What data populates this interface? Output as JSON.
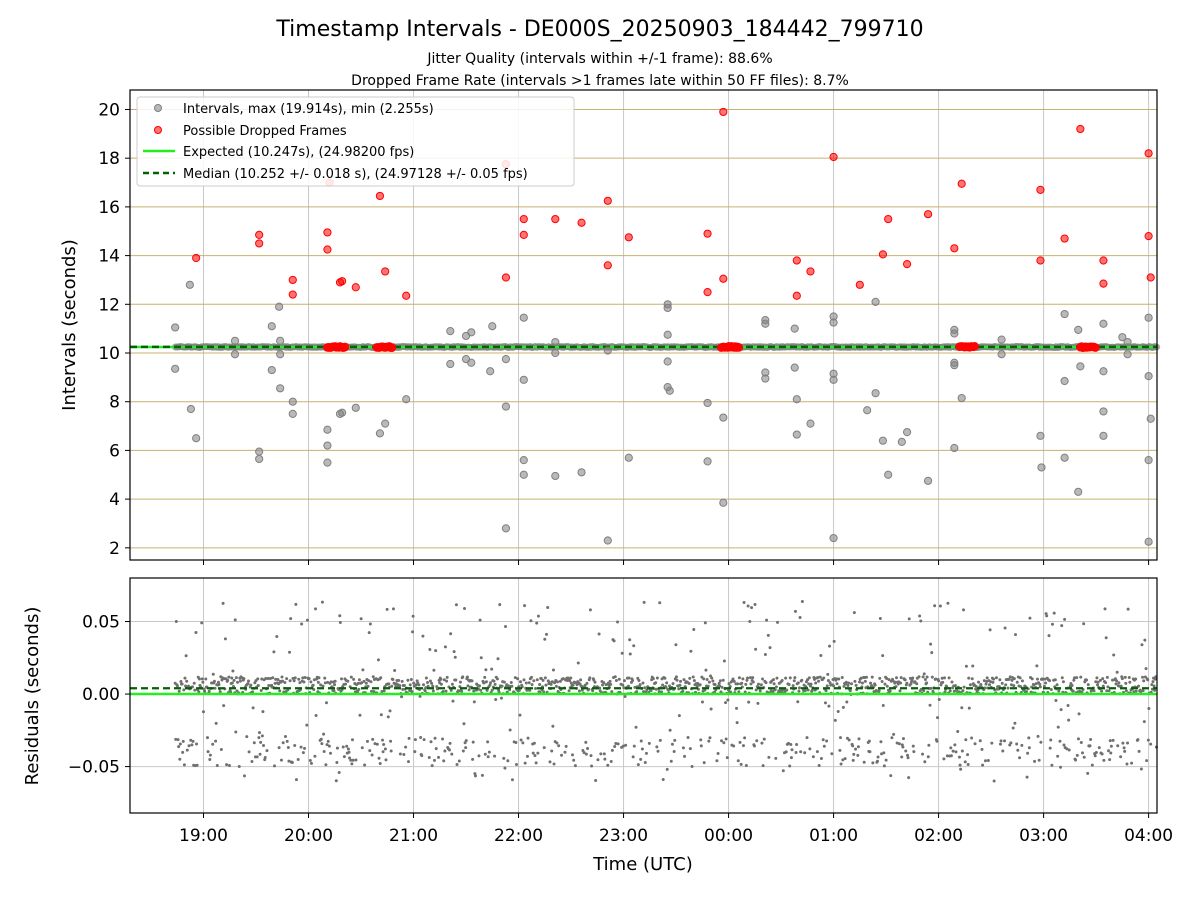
{
  "title": "Timestamp Intervals - DE000S_20250903_184442_799710",
  "subtitle1": "Jitter Quality (intervals within +/-1 frame): 88.6%",
  "subtitle2": "Dropped Frame Rate (intervals >1 frames late within 50 FF files): 8.7%",
  "colors": {
    "interval": "#808080",
    "dropped": "#ff0000",
    "expected": "#22ee22",
    "median": "#006400",
    "grid_h": "#c8b070",
    "grid_v": "#c8c8c8"
  },
  "chart_data": [
    {
      "type": "scatter",
      "panel": "intervals",
      "ylabel": "Intervals (seconds)",
      "xlabel": "",
      "xlim": [
        18.3,
        28.08
      ],
      "ylim": [
        1.5,
        20.8
      ],
      "yticks": [
        2,
        4,
        6,
        8,
        10,
        12,
        14,
        16,
        18,
        20
      ],
      "ytick_labels": [
        "2",
        "4",
        "6",
        "8",
        "10",
        "12",
        "14",
        "16",
        "18",
        "20"
      ],
      "legend": {
        "position": "top-left",
        "entries": [
          "Intervals, max (19.914s), min (2.255s)",
          "Possible Dropped Frames",
          "Expected (10.247s), (24.98200 fps)",
          "Median (10.252 +/- 0.018 s), (24.97128 +/- 0.05 fps)"
        ]
      },
      "expected": 10.247,
      "median": 10.252,
      "series": [
        {
          "name": "Intervals",
          "points": [
            [
              18.73,
              11.05
            ],
            [
              18.73,
              9.35
            ],
            [
              18.87,
              12.8
            ],
            [
              18.88,
              7.7
            ],
            [
              18.93,
              6.5
            ],
            [
              19.3,
              10.5
            ],
            [
              19.3,
              9.95
            ],
            [
              19.53,
              5.95
            ],
            [
              19.53,
              5.65
            ],
            [
              19.65,
              11.1
            ],
            [
              19.65,
              9.3
            ],
            [
              19.72,
              11.9
            ],
            [
              19.73,
              10.5
            ],
            [
              19.73,
              9.95
            ],
            [
              19.73,
              8.55
            ],
            [
              19.85,
              8.0
            ],
            [
              19.85,
              7.5
            ],
            [
              20.18,
              6.85
            ],
            [
              20.18,
              6.2
            ],
            [
              20.18,
              5.5
            ],
            [
              20.32,
              7.55
            ],
            [
              20.3,
              7.5
            ],
            [
              20.45,
              7.75
            ],
            [
              20.68,
              6.7
            ],
            [
              20.73,
              7.1
            ],
            [
              20.93,
              8.1
            ],
            [
              21.35,
              9.55
            ],
            [
              21.35,
              10.9
            ],
            [
              21.5,
              10.7
            ],
            [
              21.5,
              9.75
            ],
            [
              21.55,
              9.6
            ],
            [
              21.55,
              10.85
            ],
            [
              21.75,
              11.1
            ],
            [
              21.73,
              9.25
            ],
            [
              21.88,
              2.8
            ],
            [
              21.88,
              7.8
            ],
            [
              21.88,
              9.75
            ],
            [
              22.05,
              11.45
            ],
            [
              22.05,
              8.9
            ],
            [
              22.05,
              5.6
            ],
            [
              22.05,
              5.0
            ],
            [
              22.35,
              10.45
            ],
            [
              22.35,
              10.0
            ],
            [
              22.35,
              4.95
            ],
            [
              22.6,
              5.1
            ],
            [
              22.85,
              10.1
            ],
            [
              22.85,
              2.3
            ],
            [
              23.05,
              5.7
            ],
            [
              23.42,
              12.0
            ],
            [
              23.42,
              11.85
            ],
            [
              23.42,
              10.75
            ],
            [
              23.42,
              9.65
            ],
            [
              23.42,
              8.6
            ],
            [
              23.44,
              8.45
            ],
            [
              23.8,
              7.95
            ],
            [
              23.8,
              5.55
            ],
            [
              23.95,
              7.35
            ],
            [
              23.95,
              3.85
            ],
            [
              24.35,
              11.35
            ],
            [
              24.35,
              11.2
            ],
            [
              24.35,
              9.2
            ],
            [
              24.35,
              8.95
            ],
            [
              24.63,
              11.0
            ],
            [
              24.63,
              9.4
            ],
            [
              24.65,
              8.1
            ],
            [
              24.65,
              6.65
            ],
            [
              24.78,
              7.1
            ],
            [
              25.0,
              11.5
            ],
            [
              25.0,
              11.25
            ],
            [
              25.0,
              9.15
            ],
            [
              25.0,
              8.9
            ],
            [
              25.0,
              2.4
            ],
            [
              25.32,
              7.65
            ],
            [
              25.4,
              12.1
            ],
            [
              25.4,
              8.35
            ],
            [
              25.47,
              6.4
            ],
            [
              25.52,
              5.0
            ],
            [
              25.65,
              6.35
            ],
            [
              25.7,
              6.75
            ],
            [
              25.9,
              4.75
            ],
            [
              26.15,
              10.95
            ],
            [
              26.15,
              10.8
            ],
            [
              26.15,
              9.6
            ],
            [
              26.15,
              9.5
            ],
            [
              26.15,
              6.1
            ],
            [
              26.22,
              8.15
            ],
            [
              26.6,
              10.55
            ],
            [
              26.6,
              9.95
            ],
            [
              26.97,
              6.6
            ],
            [
              26.98,
              5.3
            ],
            [
              27.2,
              11.6
            ],
            [
              27.2,
              8.85
            ],
            [
              27.2,
              5.7
            ],
            [
              27.33,
              10.95
            ],
            [
              27.35,
              9.45
            ],
            [
              27.33,
              4.3
            ],
            [
              27.57,
              11.2
            ],
            [
              27.57,
              9.25
            ],
            [
              27.57,
              7.6
            ],
            [
              27.57,
              6.6
            ],
            [
              27.75,
              10.65
            ],
            [
              27.8,
              10.45
            ],
            [
              27.8,
              9.95
            ],
            [
              28.0,
              11.45
            ],
            [
              28.0,
              9.05
            ],
            [
              28.0,
              5.6
            ],
            [
              28.0,
              2.25
            ],
            [
              28.02,
              7.3
            ]
          ]
        },
        {
          "name": "Possible Dropped Frames",
          "points": [
            [
              18.93,
              13.9
            ],
            [
              19.53,
              14.5
            ],
            [
              19.53,
              14.85
            ],
            [
              19.85,
              13.0
            ],
            [
              19.85,
              12.4
            ],
            [
              20.18,
              14.95
            ],
            [
              20.18,
              14.25
            ],
            [
              20.2,
              17.0
            ],
            [
              20.32,
              12.95
            ],
            [
              20.3,
              12.9
            ],
            [
              20.45,
              12.7
            ],
            [
              20.68,
              16.45
            ],
            [
              20.73,
              13.35
            ],
            [
              20.93,
              12.35
            ],
            [
              21.88,
              17.75
            ],
            [
              21.88,
              13.1
            ],
            [
              22.05,
              15.5
            ],
            [
              22.05,
              14.85
            ],
            [
              22.35,
              15.5
            ],
            [
              22.6,
              15.35
            ],
            [
              22.85,
              16.25
            ],
            [
              22.85,
              13.6
            ],
            [
              23.05,
              14.75
            ],
            [
              23.8,
              14.9
            ],
            [
              23.8,
              12.5
            ],
            [
              23.95,
              19.9
            ],
            [
              23.95,
              13.05
            ],
            [
              24.65,
              13.8
            ],
            [
              24.65,
              12.35
            ],
            [
              24.78,
              13.35
            ],
            [
              25.0,
              18.05
            ],
            [
              25.25,
              12.8
            ],
            [
              25.47,
              14.05
            ],
            [
              25.52,
              15.5
            ],
            [
              25.7,
              13.65
            ],
            [
              25.9,
              15.7
            ],
            [
              26.15,
              14.3
            ],
            [
              26.22,
              16.95
            ],
            [
              26.97,
              16.7
            ],
            [
              26.97,
              13.8
            ],
            [
              27.2,
              14.7
            ],
            [
              27.35,
              19.2
            ],
            [
              27.57,
              13.8
            ],
            [
              27.57,
              12.85
            ],
            [
              28.0,
              18.2
            ],
            [
              28.0,
              14.8
            ],
            [
              28.02,
              13.1
            ]
          ]
        }
      ],
      "dropped_clusters_near_expected": [
        [
          20.18,
          20.35
        ],
        [
          20.65,
          20.8
        ],
        [
          23.93,
          24.1
        ],
        [
          26.2,
          26.35
        ],
        [
          27.35,
          27.5
        ]
      ]
    },
    {
      "type": "scatter",
      "panel": "residuals",
      "ylabel": "Residuals (seconds)",
      "xlabel": "Time (UTC)",
      "xlim": [
        18.3,
        28.08
      ],
      "ylim": [
        -0.082,
        0.08
      ],
      "yticks": [
        0.05,
        0.0,
        -0.05
      ],
      "ytick_labels": [
        "0.05",
        "0.00",
        "−0.05"
      ],
      "x_start": 18.73,
      "x_end": 28.08,
      "band_main": [
        0.0,
        0.012
      ],
      "band_low": [
        -0.05,
        -0.03
      ],
      "outlier_range": [
        -0.06,
        0.065
      ],
      "median_residual": 0.004,
      "expected_residual": 0.0,
      "xticks": [
        19,
        20,
        21,
        22,
        23,
        24,
        25,
        26,
        27,
        28
      ],
      "xtick_labels": [
        "19:00",
        "20:00",
        "21:00",
        "22:00",
        "23:00",
        "00:00",
        "01:00",
        "02:00",
        "03:00",
        "04:00"
      ]
    }
  ]
}
